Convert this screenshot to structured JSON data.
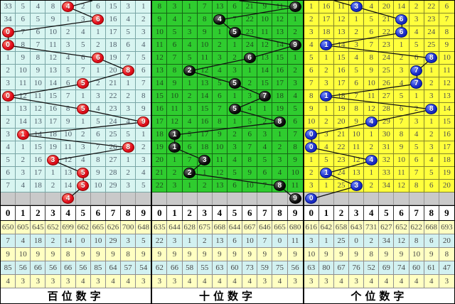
{
  "chart_data": {
    "type": "table",
    "title": "3D lottery trend chart (miss-count grid with drawn-number balls)",
    "digits": [
      "0",
      "1",
      "2",
      "3",
      "4",
      "5",
      "6",
      "7",
      "8",
      "9"
    ],
    "panels": [
      {
        "footer_label": "百位数字",
        "theme": {
          "cell_bg": "#d8f5f1",
          "grid_line": "#7aa6a6",
          "text": "#50606c",
          "ball": "red",
          "ball_color": "#e8101f"
        },
        "rows": [
          [
            33,
            5,
            4,
            8,
            4,
            2,
            6,
            15,
            3,
            1
          ],
          [
            34,
            6,
            5,
            9,
            1,
            3,
            6,
            16,
            4,
            2
          ],
          [
            0,
            7,
            6,
            10,
            2,
            4,
            1,
            17,
            5,
            3
          ],
          [
            0,
            8,
            7,
            11,
            3,
            5,
            2,
            18,
            6,
            4
          ],
          [
            1,
            9,
            8,
            12,
            4,
            6,
            6,
            19,
            7,
            5
          ],
          [
            2,
            10,
            9,
            13,
            5,
            7,
            1,
            20,
            8,
            6
          ],
          [
            3,
            11,
            10,
            14,
            6,
            5,
            2,
            21,
            1,
            7
          ],
          [
            0,
            12,
            11,
            15,
            7,
            1,
            3,
            22,
            2,
            8
          ],
          [
            1,
            13,
            12,
            16,
            8,
            5,
            4,
            23,
            3,
            9
          ],
          [
            2,
            14,
            13,
            17,
            9,
            1,
            5,
            24,
            4,
            9
          ],
          [
            3,
            1,
            14,
            18,
            10,
            2,
            6,
            25,
            5,
            1
          ],
          [
            4,
            1,
            15,
            19,
            11,
            3,
            7,
            26,
            8,
            2
          ],
          [
            5,
            2,
            16,
            3,
            12,
            4,
            8,
            27,
            1,
            3
          ],
          [
            6,
            3,
            17,
            1,
            13,
            5,
            9,
            28,
            2,
            4
          ],
          [
            7,
            4,
            18,
            2,
            14,
            5,
            10,
            29,
            3,
            5
          ]
        ],
        "ball_cols": [
          4,
          6,
          0,
          0,
          6,
          8,
          5,
          0,
          5,
          9,
          1,
          8,
          3,
          5,
          5
        ],
        "pending_ball": 4,
        "entry_top_col": 6.1,
        "summary_rows": [
          [
            650,
            605,
            645,
            652,
            699,
            662,
            665,
            626,
            700,
            648
          ],
          [
            7,
            4,
            18,
            2,
            14,
            0,
            10,
            29,
            3,
            5
          ],
          [
            9,
            10,
            9,
            9,
            8,
            9,
            9,
            9,
            8,
            9
          ],
          [
            85,
            56,
            66,
            56,
            66,
            56,
            85,
            64,
            57,
            54
          ],
          [
            4,
            3,
            3,
            3,
            3,
            4,
            3,
            4,
            4,
            3
          ]
        ]
      },
      {
        "footer_label": "十位数字",
        "theme": {
          "cell_bg": "#2fcc2f",
          "grid_line": "#156615",
          "text": "#1d4a1d",
          "ball": "black",
          "ball_color": "#111111"
        },
        "rows": [
          [
            8,
            3,
            1,
            7,
            13,
            6,
            21,
            9,
            11,
            9
          ],
          [
            9,
            4,
            2,
            8,
            4,
            7,
            22,
            10,
            12,
            1
          ],
          [
            10,
            5,
            3,
            9,
            1,
            5,
            23,
            11,
            13,
            2
          ],
          [
            11,
            6,
            4,
            10,
            2,
            1,
            24,
            12,
            14,
            9
          ],
          [
            12,
            7,
            5,
            11,
            3,
            2,
            6,
            13,
            15,
            1
          ],
          [
            13,
            8,
            2,
            12,
            4,
            3,
            1,
            14,
            16,
            2
          ],
          [
            14,
            9,
            1,
            13,
            5,
            5,
            2,
            15,
            17,
            3
          ],
          [
            15,
            10,
            2,
            14,
            6,
            1,
            3,
            7,
            18,
            4
          ],
          [
            16,
            11,
            3,
            15,
            7,
            5,
            4,
            1,
            19,
            5
          ],
          [
            17,
            12,
            4,
            16,
            8,
            1,
            5,
            2,
            8,
            6
          ],
          [
            18,
            1,
            5,
            17,
            9,
            2,
            6,
            3,
            1,
            7
          ],
          [
            19,
            1,
            6,
            18,
            10,
            3,
            7,
            4,
            2,
            8
          ],
          [
            20,
            1,
            7,
            3,
            11,
            4,
            8,
            5,
            3,
            9
          ],
          [
            21,
            2,
            2,
            1,
            12,
            5,
            9,
            6,
            4,
            10
          ],
          [
            22,
            3,
            1,
            2,
            13,
            6,
            10,
            7,
            8,
            11
          ]
        ],
        "ball_cols": [
          9,
          4,
          5,
          9,
          6,
          2,
          5,
          7,
          5,
          8,
          1,
          1,
          3,
          2,
          8
        ],
        "pending_ball": 9,
        "entry_top_col": 5.8,
        "summary_rows": [
          [
            635,
            644,
            628,
            675,
            668,
            644,
            667,
            646,
            665,
            680
          ],
          [
            22,
            3,
            1,
            2,
            13,
            6,
            10,
            7,
            0,
            11
          ],
          [
            9,
            9,
            9,
            9,
            9,
            9,
            9,
            9,
            9,
            9
          ],
          [
            62,
            66,
            58,
            55,
            63,
            60,
            73,
            59,
            75,
            56
          ],
          [
            3,
            3,
            4,
            4,
            4,
            4,
            4,
            3,
            4,
            3
          ]
        ]
      },
      {
        "footer_label": "个位数字",
        "theme": {
          "cell_bg": "#ffff3c",
          "grid_line": "#84842a",
          "text": "#4f4f4f",
          "ball": "blue",
          "ball_color": "#1c2fd0"
        },
        "rows": [
          [
            1,
            16,
            11,
            3,
            4,
            20,
            14,
            2,
            22,
            6
          ],
          [
            2,
            17,
            12,
            1,
            5,
            21,
            6,
            3,
            23,
            7
          ],
          [
            3,
            18,
            13,
            2,
            6,
            22,
            6,
            4,
            24,
            8
          ],
          [
            4,
            1,
            14,
            3,
            7,
            23,
            1,
            5,
            25,
            9
          ],
          [
            5,
            1,
            15,
            4,
            8,
            24,
            2,
            6,
            8,
            10
          ],
          [
            6,
            2,
            16,
            5,
            9,
            25,
            3,
            7,
            1,
            11
          ],
          [
            7,
            3,
            17,
            6,
            10,
            26,
            4,
            7,
            2,
            12
          ],
          [
            8,
            1,
            18,
            7,
            11,
            27,
            5,
            1,
            3,
            13
          ],
          [
            9,
            1,
            19,
            8,
            12,
            28,
            6,
            2,
            8,
            14
          ],
          [
            10,
            2,
            20,
            9,
            4,
            29,
            7,
            3,
            1,
            15
          ],
          [
            0,
            3,
            21,
            10,
            1,
            30,
            8,
            4,
            2,
            16
          ],
          [
            0,
            4,
            22,
            11,
            2,
            31,
            9,
            5,
            3,
            17
          ],
          [
            1,
            5,
            23,
            12,
            4,
            32,
            10,
            6,
            4,
            18
          ],
          [
            2,
            1,
            24,
            13,
            1,
            33,
            11,
            7,
            5,
            19
          ],
          [
            3,
            1,
            25,
            3,
            2,
            34,
            12,
            8,
            6,
            20
          ]
        ],
        "ball_cols": [
          3,
          6,
          6,
          1,
          8,
          7,
          7,
          1,
          8,
          4,
          0,
          0,
          4,
          1,
          3
        ],
        "pending_ball": 0,
        "entry_top_col": 2.0,
        "summary_rows": [
          [
            616,
            642,
            658,
            643,
            731,
            627,
            652,
            622,
            668,
            693
          ],
          [
            3,
            1,
            25,
            0,
            2,
            34,
            12,
            8,
            6,
            20
          ],
          [
            10,
            9,
            9,
            9,
            8,
            9,
            9,
            10,
            9,
            8
          ],
          [
            63,
            80,
            67,
            76,
            52,
            69,
            74,
            60,
            61,
            47
          ],
          [
            3,
            3,
            4,
            3,
            4,
            4,
            4,
            4,
            4,
            3
          ]
        ]
      }
    ],
    "layout": {
      "grid_rows": 15,
      "grid_cols": 10,
      "pending_row_bg": "#c9c9c9",
      "summary_row_colors": [
        "#ffffc2",
        "#d2f1f1",
        "#ffffc2",
        "#d2f1f1",
        "#ffffc2"
      ],
      "line_color": "#111111"
    }
  }
}
